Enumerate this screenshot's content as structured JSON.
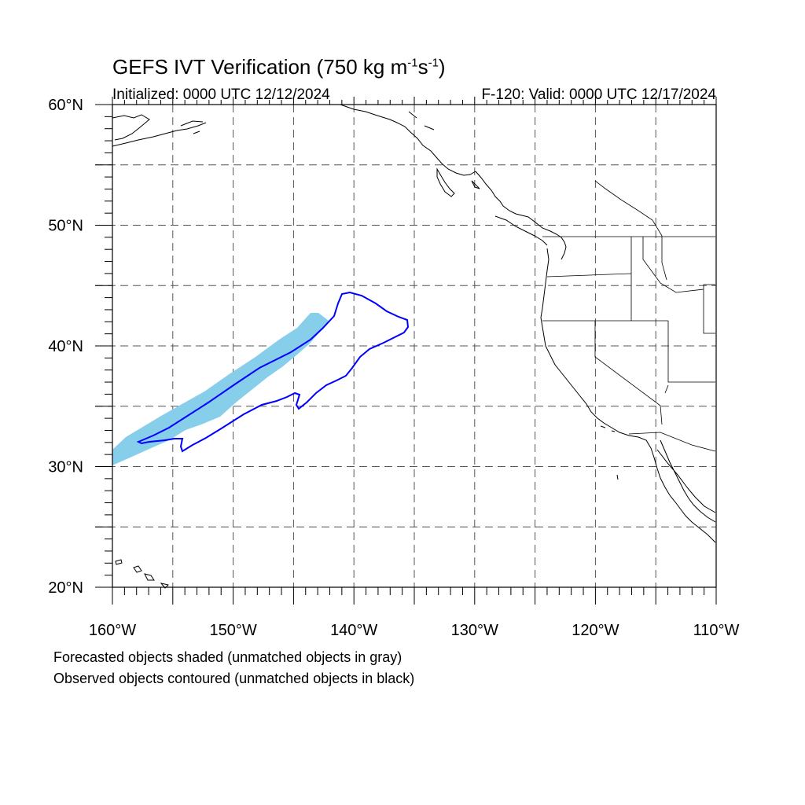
{
  "title": {
    "main": "GEFS IVT Verification (750 kg m",
    "sup1": "-1",
    "mid": "s",
    "sup2": "-1",
    "end": ")"
  },
  "initialized": "Initialized: 0000 UTC 12/12/2024",
  "valid": "F-120: Valid: 0000 UTC 12/17/2024",
  "map": {
    "extent": {
      "lon_min": -160,
      "lon_max": -110,
      "lat_min": 20,
      "lat_max": 60
    },
    "lon_ticks": [
      "160°W",
      "150°W",
      "140°W",
      "130°W",
      "120°W",
      "110°W"
    ],
    "lat_ticks": [
      "60°N",
      "50°N",
      "40°N",
      "30°N",
      "20°N"
    ],
    "gridlines": "dashed every 5°",
    "colors": {
      "forecast_fill": "#87ceeb",
      "observed_contour": "#0000ff",
      "coastline": "#000000",
      "grid": "#555555"
    }
  },
  "notes": {
    "forecast": "Forecasted objects shaded (unmatched objects in gray)",
    "observed": "Observed objects contoured (unmatched objects in black)"
  }
}
